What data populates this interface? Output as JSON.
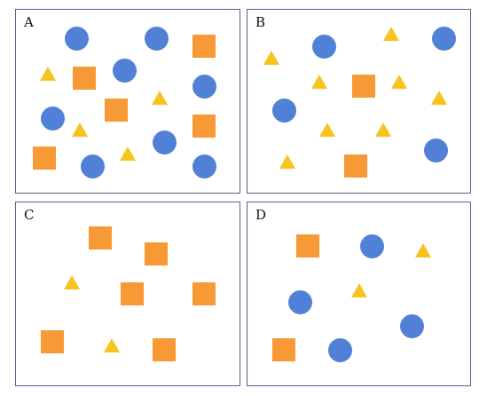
{
  "colors": {
    "circle": "#5081d6",
    "square": "#f79a35",
    "triangle": "#f8c31c",
    "border": "#5a5f8f"
  },
  "panels": [
    {
      "label": "A",
      "shape_counts": {
        "circle": 8,
        "square": 5,
        "triangle": 4
      }
    },
    {
      "label": "B",
      "shape_counts": {
        "circle": 4,
        "square": 2,
        "triangle": 9
      }
    },
    {
      "label": "C",
      "shape_counts": {
        "circle": 0,
        "square": 6,
        "triangle": 2
      }
    },
    {
      "label": "D",
      "shape_counts": {
        "circle": 4,
        "square": 2,
        "triangle": 2
      }
    }
  ]
}
